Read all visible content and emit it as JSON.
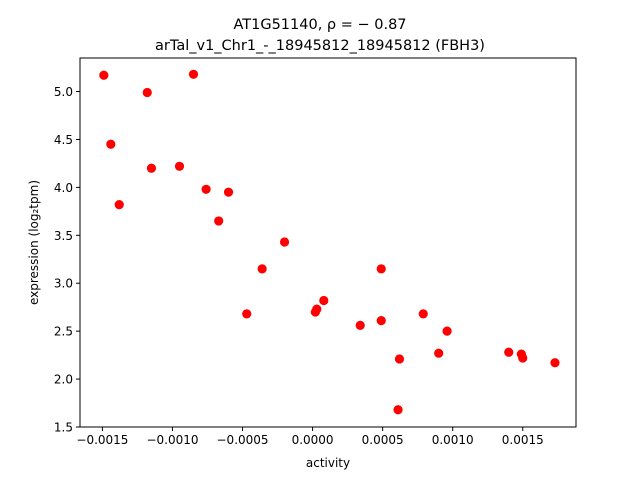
{
  "chart_data": {
    "type": "scatter",
    "title_line1": "AT1G51140, ρ = − 0.87",
    "title_line2": "arTal_v1_Chr1_-_18945812_18945812 (FBH3)",
    "xlabel": "activity",
    "ylabel": "expression (log₂tpm)",
    "xlim": [
      -0.00166,
      0.00188
    ],
    "ylim": [
      1.5,
      5.35
    ],
    "xticks": [
      {
        "value": -0.0015,
        "label": "−0.0015"
      },
      {
        "value": -0.001,
        "label": "−0.0010"
      },
      {
        "value": -0.0005,
        "label": "−0.0005"
      },
      {
        "value": 0.0,
        "label": "0.0000"
      },
      {
        "value": 0.0005,
        "label": "0.0005"
      },
      {
        "value": 0.001,
        "label": "0.0010"
      },
      {
        "value": 0.0015,
        "label": "0.0015"
      }
    ],
    "yticks": [
      {
        "value": 1.5,
        "label": "1.5"
      },
      {
        "value": 2.0,
        "label": "2.0"
      },
      {
        "value": 2.5,
        "label": "2.5"
      },
      {
        "value": 3.0,
        "label": "3.0"
      },
      {
        "value": 3.5,
        "label": "3.5"
      },
      {
        "value": 4.0,
        "label": "4.0"
      },
      {
        "value": 4.5,
        "label": "4.5"
      },
      {
        "value": 5.0,
        "label": "5.0"
      }
    ],
    "marker_color": "#ff0000",
    "grid": false,
    "points": [
      {
        "x": -0.00149,
        "y": 5.17
      },
      {
        "x": -0.00144,
        "y": 4.45
      },
      {
        "x": -0.00138,
        "y": 3.82
      },
      {
        "x": -0.00118,
        "y": 4.99
      },
      {
        "x": -0.00115,
        "y": 4.2
      },
      {
        "x": -0.00095,
        "y": 4.22
      },
      {
        "x": -0.00085,
        "y": 5.18
      },
      {
        "x": -0.00076,
        "y": 3.98
      },
      {
        "x": -0.00067,
        "y": 3.65
      },
      {
        "x": -0.0006,
        "y": 3.95
      },
      {
        "x": -0.00047,
        "y": 2.68
      },
      {
        "x": -0.00036,
        "y": 3.15
      },
      {
        "x": -0.0002,
        "y": 3.43
      },
      {
        "x": 2e-05,
        "y": 2.7
      },
      {
        "x": 3e-05,
        "y": 2.73
      },
      {
        "x": 8e-05,
        "y": 2.82
      },
      {
        "x": 0.00034,
        "y": 2.56
      },
      {
        "x": 0.00049,
        "y": 3.15
      },
      {
        "x": 0.00049,
        "y": 2.61
      },
      {
        "x": 0.00061,
        "y": 1.68
      },
      {
        "x": 0.00062,
        "y": 2.21
      },
      {
        "x": 0.00079,
        "y": 2.68
      },
      {
        "x": 0.0009,
        "y": 2.27
      },
      {
        "x": 0.00096,
        "y": 2.5
      },
      {
        "x": 0.0014,
        "y": 2.28
      },
      {
        "x": 0.00149,
        "y": 2.26
      },
      {
        "x": 0.0015,
        "y": 2.22
      },
      {
        "x": 0.00173,
        "y": 2.17
      }
    ]
  }
}
